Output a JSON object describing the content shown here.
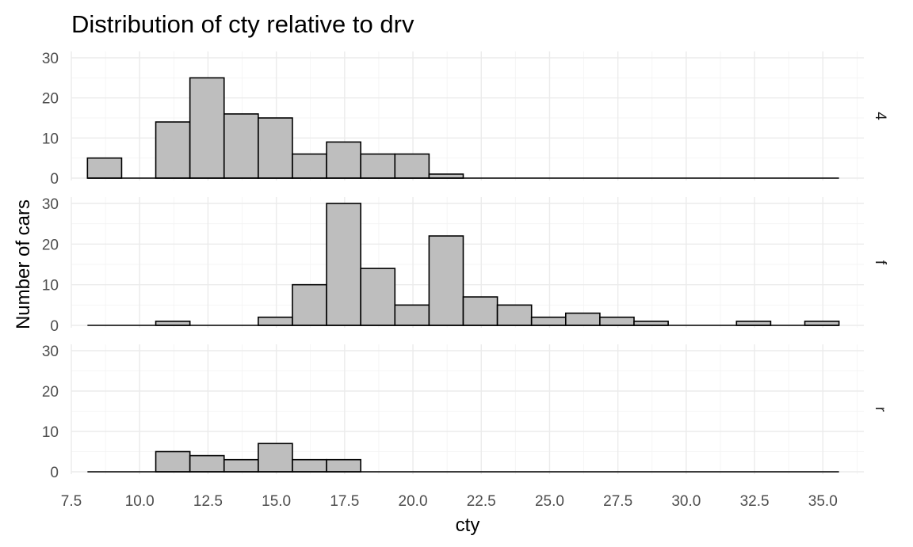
{
  "chart_data": {
    "type": "histogram",
    "title": "Distribution of cty relative to drv",
    "xlabel": "cty",
    "ylabel": "Number of cars",
    "xlim": [
      7.5,
      36.5
    ],
    "ylim": [
      0,
      30
    ],
    "x_ticks": [
      "7.5",
      "10.0",
      "12.5",
      "15.0",
      "17.5",
      "20.0",
      "22.5",
      "25.0",
      "27.5",
      "30.0",
      "32.5",
      "35.0"
    ],
    "x_tick_values": [
      7.5,
      10.0,
      12.5,
      15.0,
      17.5,
      20.0,
      22.5,
      25.0,
      27.5,
      30.0,
      32.5,
      35.0
    ],
    "y_ticks": [
      "0",
      "10",
      "20",
      "30"
    ],
    "y_tick_values": [
      0,
      10,
      20,
      30
    ],
    "bin_start": 8.09,
    "bin_width": 1.25,
    "grid": true,
    "fill_color": "#bebebe",
    "outline_color": "#000000",
    "facets": [
      {
        "label": "4",
        "counts": [
          5,
          0,
          14,
          25,
          16,
          15,
          6,
          9,
          6,
          6,
          1,
          0,
          0,
          0,
          0,
          0,
          0,
          0,
          0,
          0,
          0,
          0
        ]
      },
      {
        "label": "f",
        "counts": [
          0,
          0,
          1,
          0,
          0,
          2,
          10,
          30,
          14,
          5,
          22,
          7,
          5,
          2,
          3,
          2,
          1,
          0,
          0,
          1,
          0,
          1
        ]
      },
      {
        "label": "r",
        "counts": [
          0,
          0,
          5,
          4,
          3,
          7,
          3,
          3,
          0,
          0,
          0,
          0,
          0,
          0,
          0,
          0,
          0,
          0,
          0,
          0,
          0,
          0
        ]
      }
    ]
  }
}
